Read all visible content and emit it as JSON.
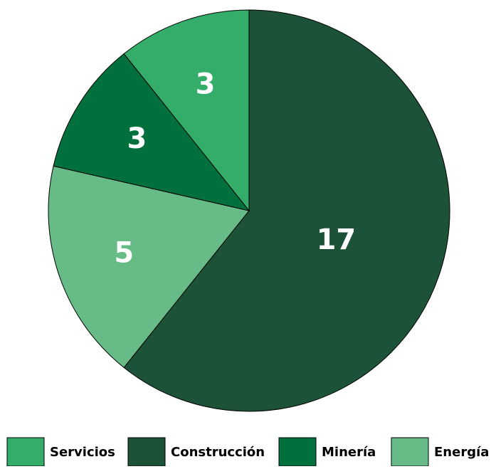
{
  "chart_data": {
    "type": "pie",
    "categories": [
      "Construcción",
      "Energía",
      "Minería",
      "Servicios"
    ],
    "values": [
      17,
      5,
      3,
      3
    ],
    "colors": [
      "#1c5237",
      "#66bb87",
      "#02703c",
      "#33ad69"
    ]
  }
}
